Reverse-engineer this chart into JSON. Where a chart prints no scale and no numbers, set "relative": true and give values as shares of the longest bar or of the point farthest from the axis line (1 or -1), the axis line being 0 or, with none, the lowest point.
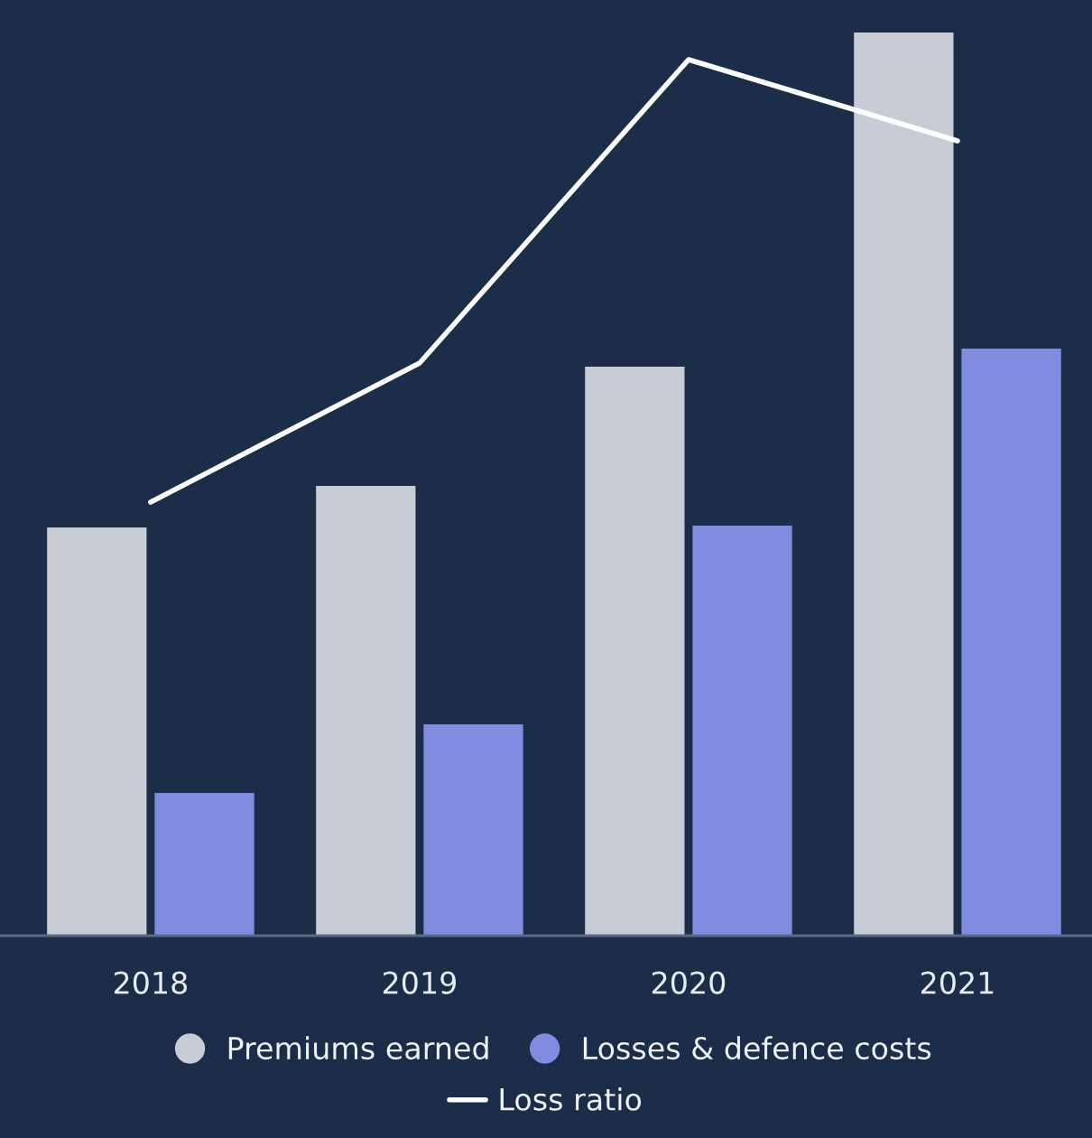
{
  "chart_data": {
    "type": "bar",
    "relative": true,
    "categories": [
      "2018",
      "2019",
      "2020",
      "2021"
    ],
    "series": [
      {
        "name": "Premiums earned",
        "color": "#c8ccd4",
        "values": [
          0.452,
          0.498,
          0.63,
          1.0
        ]
      },
      {
        "name": "Losses & defence costs",
        "color": "#7f8ce0",
        "values": [
          0.158,
          0.234,
          0.454,
          0.65
        ]
      },
      {
        "name": "Loss ratio",
        "type": "line",
        "color": "#ffffff",
        "values": [
          0.48,
          0.634,
          0.97,
          0.88
        ]
      }
    ],
    "legend": "bottom",
    "grid": false
  }
}
